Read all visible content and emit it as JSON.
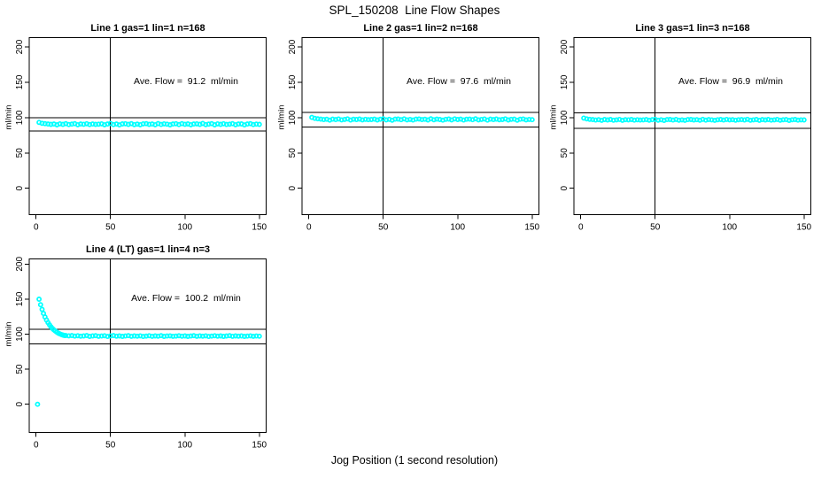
{
  "figure": {
    "title": "SPL_150208  Line Flow Shapes",
    "xlabel": "Jog Position (1 second resolution)"
  },
  "colors": {
    "points": "#00FFFF",
    "axis": "#000000",
    "background": "#FFFFFF"
  },
  "chart_data": [
    {
      "type": "scatter",
      "title": "Line 1 gas=1 lin=1 n=168",
      "annotation": "Ave. Flow =  91.2  ml/min",
      "ave_flow": 91.2,
      "ylabel": "ml/min",
      "x_ticks": [
        0,
        50,
        100,
        150
      ],
      "y_ticks": [
        0,
        50,
        100,
        150,
        200
      ],
      "xlim": [
        -4.6,
        154.6
      ],
      "ylim": [
        -37.3,
        213.2
      ],
      "vline_x": 50,
      "ref_lines": [
        99.8,
        81.0
      ],
      "points": [
        [
          2,
          93.2
        ],
        [
          4,
          92.0
        ],
        [
          6,
          91.4
        ],
        [
          8,
          91.0
        ],
        [
          10,
          90.5
        ],
        [
          12,
          91.0
        ],
        [
          14,
          89.8
        ],
        [
          16,
          91.2
        ],
        [
          18,
          90.5
        ],
        [
          20,
          91.4
        ],
        [
          22,
          90.2
        ],
        [
          24,
          90.8
        ],
        [
          26,
          91.5
        ],
        [
          28,
          89.9
        ],
        [
          30,
          91.0
        ],
        [
          32,
          90.6
        ],
        [
          34,
          91.3
        ],
        [
          36,
          90.2
        ],
        [
          38,
          90.9
        ],
        [
          40,
          90.4
        ],
        [
          42,
          90.7
        ],
        [
          44,
          91.2
        ],
        [
          46,
          90.0
        ],
        [
          48,
          91.0
        ],
        [
          50,
          91.7
        ],
        [
          52,
          90.2
        ],
        [
          54,
          90.9
        ],
        [
          56,
          89.7
        ],
        [
          58,
          91.1
        ],
        [
          60,
          91.3
        ],
        [
          62,
          90.4
        ],
        [
          64,
          91.5
        ],
        [
          66,
          90.1
        ],
        [
          68,
          90.8
        ],
        [
          70,
          89.9
        ],
        [
          72,
          91.2
        ],
        [
          74,
          91.4
        ],
        [
          76,
          90.5
        ],
        [
          78,
          91.0
        ],
        [
          80,
          90.0
        ],
        [
          82,
          91.6
        ],
        [
          84,
          90.3
        ],
        [
          86,
          91.2
        ],
        [
          88,
          90.7
        ],
        [
          90,
          89.8
        ],
        [
          92,
          90.9
        ],
        [
          94,
          91.3
        ],
        [
          96,
          90.2
        ],
        [
          98,
          91.5
        ],
        [
          100,
          90.6
        ],
        [
          102,
          91.1
        ],
        [
          104,
          89.9
        ],
        [
          106,
          91.0
        ],
        [
          108,
          91.2
        ],
        [
          110,
          90.4
        ],
        [
          112,
          91.7
        ],
        [
          114,
          90.1
        ],
        [
          116,
          90.8
        ],
        [
          118,
          91.4
        ],
        [
          120,
          89.8
        ],
        [
          122,
          91.2
        ],
        [
          124,
          90.5
        ],
        [
          126,
          91.3
        ],
        [
          128,
          90.3
        ],
        [
          130,
          90.7
        ],
        [
          132,
          91.5
        ],
        [
          134,
          90.0
        ],
        [
          136,
          90.9
        ],
        [
          138,
          91.1
        ],
        [
          140,
          89.7
        ],
        [
          142,
          91.0
        ],
        [
          144,
          91.4
        ],
        [
          146,
          90.2
        ],
        [
          148,
          90.8
        ],
        [
          150,
          90.4
        ]
      ]
    },
    {
      "type": "scatter",
      "title": "Line 2 gas=1 lin=2 n=168",
      "annotation": "Ave. Flow =  97.6  ml/min",
      "ave_flow": 97.6,
      "ylabel": "ml/min",
      "x_ticks": [
        0,
        50,
        100,
        150
      ],
      "y_ticks": [
        0,
        50,
        100,
        150,
        200
      ],
      "xlim": [
        -4.6,
        154.6
      ],
      "ylim": [
        -37.3,
        213.2
      ],
      "vline_x": 50,
      "ref_lines": [
        107.2,
        87.0
      ],
      "points": [
        [
          2,
          100.4
        ],
        [
          4,
          99.0
        ],
        [
          6,
          98.3
        ],
        [
          8,
          97.9
        ],
        [
          10,
          97.2
        ],
        [
          12,
          97.7
        ],
        [
          14,
          96.5
        ],
        [
          16,
          97.9
        ],
        [
          18,
          97.2
        ],
        [
          20,
          98.1
        ],
        [
          22,
          96.9
        ],
        [
          24,
          97.5
        ],
        [
          26,
          98.2
        ],
        [
          28,
          96.6
        ],
        [
          30,
          97.7
        ],
        [
          32,
          97.3
        ],
        [
          34,
          98.0
        ],
        [
          36,
          96.9
        ],
        [
          38,
          97.6
        ],
        [
          40,
          97.1
        ],
        [
          42,
          97.4
        ],
        [
          44,
          97.9
        ],
        [
          46,
          96.7
        ],
        [
          48,
          97.7
        ],
        [
          50,
          98.4
        ],
        [
          52,
          96.9
        ],
        [
          54,
          97.6
        ],
        [
          56,
          96.4
        ],
        [
          58,
          97.8
        ],
        [
          60,
          98.0
        ],
        [
          62,
          97.1
        ],
        [
          64,
          98.2
        ],
        [
          66,
          96.8
        ],
        [
          68,
          97.5
        ],
        [
          70,
          96.6
        ],
        [
          72,
          97.9
        ],
        [
          74,
          98.1
        ],
        [
          76,
          97.2
        ],
        [
          78,
          97.7
        ],
        [
          80,
          96.7
        ],
        [
          82,
          98.3
        ],
        [
          84,
          97.0
        ],
        [
          86,
          97.9
        ],
        [
          88,
          97.4
        ],
        [
          90,
          96.5
        ],
        [
          92,
          97.6
        ],
        [
          94,
          98.0
        ],
        [
          96,
          96.9
        ],
        [
          98,
          98.2
        ],
        [
          100,
          97.3
        ],
        [
          102,
          97.8
        ],
        [
          104,
          96.6
        ],
        [
          106,
          97.7
        ],
        [
          108,
          97.9
        ],
        [
          110,
          97.1
        ],
        [
          112,
          98.4
        ],
        [
          114,
          96.8
        ],
        [
          116,
          97.5
        ],
        [
          118,
          98.1
        ],
        [
          120,
          96.5
        ],
        [
          122,
          97.9
        ],
        [
          124,
          97.2
        ],
        [
          126,
          98.0
        ],
        [
          128,
          97.0
        ],
        [
          130,
          97.4
        ],
        [
          132,
          98.2
        ],
        [
          134,
          96.7
        ],
        [
          136,
          97.6
        ],
        [
          138,
          97.8
        ],
        [
          140,
          96.4
        ],
        [
          142,
          97.7
        ],
        [
          144,
          98.1
        ],
        [
          146,
          96.9
        ],
        [
          148,
          97.5
        ],
        [
          150,
          97.1
        ]
      ]
    },
    {
      "type": "scatter",
      "title": "Line 3 gas=1 lin=3 n=168",
      "annotation": "Ave. Flow =  96.9  ml/min",
      "ave_flow": 96.9,
      "ylabel": "ml/min",
      "x_ticks": [
        0,
        50,
        100,
        150
      ],
      "y_ticks": [
        0,
        50,
        100,
        150,
        200
      ],
      "xlim": [
        -4.6,
        154.6
      ],
      "ylim": [
        -37.3,
        213.2
      ],
      "vline_x": 50,
      "ref_lines": [
        106.8,
        85.0
      ],
      "points": [
        [
          2,
          99.3
        ],
        [
          4,
          98.2
        ],
        [
          6,
          97.6
        ],
        [
          8,
          97.2
        ],
        [
          10,
          96.6
        ],
        [
          12,
          97.1
        ],
        [
          14,
          96.2
        ],
        [
          16,
          97.3
        ],
        [
          18,
          96.7
        ],
        [
          20,
          97.4
        ],
        [
          22,
          96.4
        ],
        [
          24,
          96.9
        ],
        [
          26,
          97.5
        ],
        [
          28,
          96.2
        ],
        [
          30,
          97.1
        ],
        [
          32,
          96.8
        ],
        [
          34,
          97.3
        ],
        [
          36,
          96.5
        ],
        [
          38,
          97.0
        ],
        [
          40,
          96.6
        ],
        [
          42,
          96.9
        ],
        [
          44,
          97.2
        ],
        [
          46,
          96.3
        ],
        [
          48,
          97.1
        ],
        [
          50,
          97.6
        ],
        [
          52,
          96.4
        ],
        [
          54,
          97.0
        ],
        [
          56,
          96.1
        ],
        [
          58,
          97.2
        ],
        [
          60,
          97.4
        ],
        [
          62,
          96.6
        ],
        [
          64,
          97.5
        ],
        [
          66,
          96.3
        ],
        [
          68,
          96.9
        ],
        [
          70,
          96.2
        ],
        [
          72,
          97.2
        ],
        [
          74,
          97.4
        ],
        [
          76,
          96.7
        ],
        [
          78,
          97.1
        ],
        [
          80,
          96.3
        ],
        [
          82,
          97.6
        ],
        [
          84,
          96.5
        ],
        [
          86,
          97.2
        ],
        [
          88,
          96.9
        ],
        [
          90,
          96.2
        ],
        [
          92,
          97.0
        ],
        [
          94,
          97.3
        ],
        [
          96,
          96.6
        ],
        [
          98,
          97.5
        ],
        [
          100,
          96.8
        ],
        [
          102,
          97.1
        ],
        [
          104,
          96.3
        ],
        [
          106,
          97.0
        ],
        [
          108,
          97.2
        ],
        [
          110,
          96.7
        ],
        [
          112,
          97.6
        ],
        [
          114,
          96.4
        ],
        [
          116,
          96.9
        ],
        [
          118,
          97.4
        ],
        [
          120,
          96.2
        ],
        [
          122,
          97.2
        ],
        [
          124,
          96.7
        ],
        [
          126,
          97.3
        ],
        [
          128,
          96.5
        ],
        [
          130,
          96.9
        ],
        [
          132,
          97.5
        ],
        [
          134,
          96.3
        ],
        [
          136,
          97.0
        ],
        [
          138,
          97.2
        ],
        [
          140,
          96.1
        ],
        [
          142,
          97.0
        ],
        [
          144,
          97.4
        ],
        [
          146,
          96.5
        ],
        [
          148,
          96.9
        ],
        [
          150,
          96.7
        ]
      ]
    },
    {
      "type": "scatter",
      "title": "Line 4 (LT) gas=1 lin=4 n=3",
      "annotation": "Ave. Flow =  100.2  ml/min",
      "ave_flow": 100.2,
      "ylabel": "ml/min",
      "x_ticks": [
        0,
        50,
        100,
        150
      ],
      "y_ticks": [
        0,
        50,
        100,
        150,
        200
      ],
      "xlim": [
        -4.6,
        154.6
      ],
      "ylim": [
        -40.2,
        207.3
      ],
      "vline_x": 50,
      "ref_lines": [
        107.0,
        86.3
      ],
      "points": [
        [
          1,
          0
        ],
        [
          2,
          149.8
        ],
        [
          3,
          142.0
        ],
        [
          4,
          135.3
        ],
        [
          5,
          129.5
        ],
        [
          6,
          124.5
        ],
        [
          7,
          120.2
        ],
        [
          8,
          116.5
        ],
        [
          9,
          113.3
        ],
        [
          10,
          110.5
        ],
        [
          11,
          108.1
        ],
        [
          12,
          106.0
        ],
        [
          13,
          104.2
        ],
        [
          14,
          102.7
        ],
        [
          15,
          101.4
        ],
        [
          16,
          100.3
        ],
        [
          17,
          99.4
        ],
        [
          18,
          98.7
        ],
        [
          19,
          98.1
        ],
        [
          20,
          97.9
        ],
        [
          22,
          97.6
        ],
        [
          24,
          97.9
        ],
        [
          26,
          97.2
        ],
        [
          28,
          97.7
        ],
        [
          30,
          97.0
        ],
        [
          32,
          97.5
        ],
        [
          34,
          97.9
        ],
        [
          36,
          96.8
        ],
        [
          38,
          97.4
        ],
        [
          40,
          97.8
        ],
        [
          42,
          96.9
        ],
        [
          44,
          97.3
        ],
        [
          46,
          97.7
        ],
        [
          48,
          96.7
        ],
        [
          50,
          97.4
        ],
        [
          52,
          97.9
        ],
        [
          54,
          97.1
        ],
        [
          56,
          97.5
        ],
        [
          58,
          96.8
        ],
        [
          60,
          97.3
        ],
        [
          62,
          97.8
        ],
        [
          64,
          96.9
        ],
        [
          66,
          97.4
        ],
        [
          68,
          97.0
        ],
        [
          70,
          97.6
        ],
        [
          72,
          96.7
        ],
        [
          74,
          97.2
        ],
        [
          76,
          97.7
        ],
        [
          78,
          96.9
        ],
        [
          80,
          97.4
        ],
        [
          82,
          97.1
        ],
        [
          84,
          97.8
        ],
        [
          86,
          96.8
        ],
        [
          88,
          97.3
        ],
        [
          90,
          97.6
        ],
        [
          92,
          96.9
        ],
        [
          94,
          97.2
        ],
        [
          96,
          97.7
        ],
        [
          98,
          97.0
        ],
        [
          100,
          97.5
        ],
        [
          102,
          96.8
        ],
        [
          104,
          97.3
        ],
        [
          106,
          97.8
        ],
        [
          108,
          96.9
        ],
        [
          110,
          97.4
        ],
        [
          112,
          97.1
        ],
        [
          114,
          97.6
        ],
        [
          116,
          96.7
        ],
        [
          118,
          97.2
        ],
        [
          120,
          97.7
        ],
        [
          122,
          97.0
        ],
        [
          124,
          97.5
        ],
        [
          126,
          96.8
        ],
        [
          128,
          97.3
        ],
        [
          130,
          97.8
        ],
        [
          132,
          96.9
        ],
        [
          134,
          97.4
        ],
        [
          136,
          97.0
        ],
        [
          138,
          97.5
        ],
        [
          140,
          96.8
        ],
        [
          142,
          97.2
        ],
        [
          144,
          97.6
        ],
        [
          146,
          96.9
        ],
        [
          148,
          97.3
        ],
        [
          150,
          97.1
        ]
      ]
    }
  ]
}
